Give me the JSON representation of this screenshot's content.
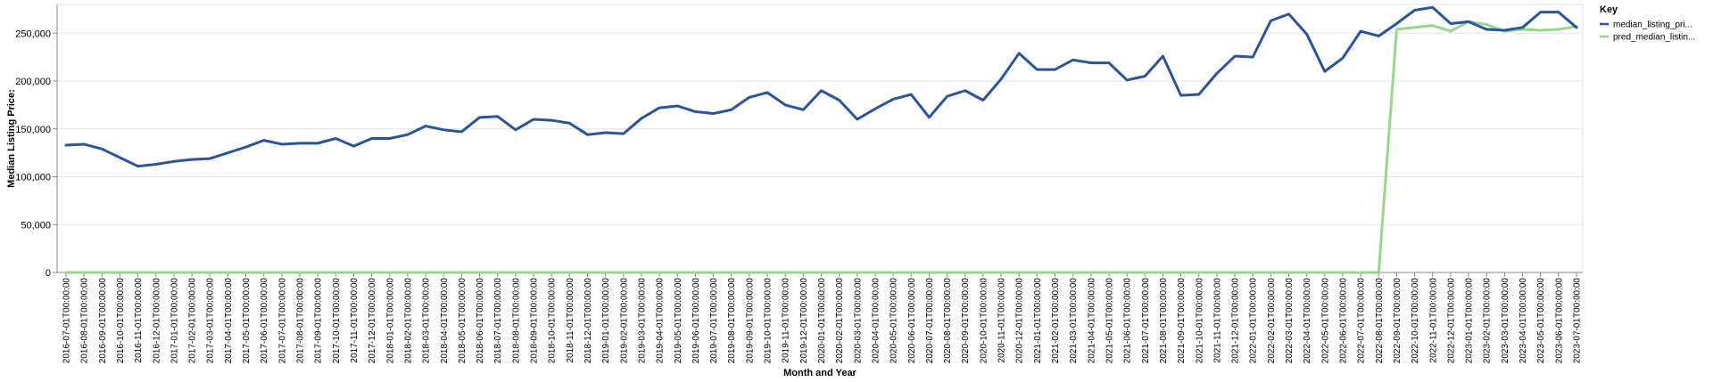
{
  "chart_data": {
    "type": "line",
    "xlabel": "Month and Year",
    "ylabel": "Median Listing Price:",
    "ylim": [
      0,
      280000
    ],
    "yticks": [
      0,
      50000,
      100000,
      150000,
      200000,
      250000
    ],
    "ytick_labels": [
      "0",
      "50,000",
      "100,000",
      "150,000",
      "200,000",
      "250,000"
    ],
    "grid": true,
    "legend": {
      "title": "Key",
      "placement": "top-right"
    },
    "colors": {
      "median_listing_price": "#2b5598",
      "pred_median_listing_price": "#98d68c"
    },
    "x": [
      "2016-07-01T00:00:00",
      "2016-08-01T00:00:00",
      "2016-09-01T00:00:00",
      "2016-10-01T00:00:00",
      "2016-11-01T00:00:00",
      "2016-12-01T00:00:00",
      "2017-01-01T00:00:00",
      "2017-02-01T00:00:00",
      "2017-03-01T00:00:00",
      "2017-04-01T00:00:00",
      "2017-05-01T00:00:00",
      "2017-06-01T00:00:00",
      "2017-07-01T00:00:00",
      "2017-08-01T00:00:00",
      "2017-09-01T00:00:00",
      "2017-10-01T00:00:00",
      "2017-11-01T00:00:00",
      "2017-12-01T00:00:00",
      "2018-01-01T00:00:00",
      "2018-02-01T00:00:00",
      "2018-03-01T00:00:00",
      "2018-04-01T00:00:00",
      "2018-05-01T00:00:00",
      "2018-06-01T00:00:00",
      "2018-07-01T00:00:00",
      "2018-08-01T00:00:00",
      "2018-09-01T00:00:00",
      "2018-10-01T00:00:00",
      "2018-11-01T00:00:00",
      "2018-12-01T00:00:00",
      "2019-01-01T00:00:00",
      "2019-02-01T00:00:00",
      "2019-03-01T00:00:00",
      "2019-04-01T00:00:00",
      "2019-05-01T00:00:00",
      "2019-06-01T00:00:00",
      "2019-07-01T00:00:00",
      "2019-08-01T00:00:00",
      "2019-09-01T00:00:00",
      "2019-10-01T00:00:00",
      "2019-11-01T00:00:00",
      "2019-12-01T00:00:00",
      "2020-01-01T00:00:00",
      "2020-02-01T00:00:00",
      "2020-03-01T00:00:00",
      "2020-04-01T00:00:00",
      "2020-05-01T00:00:00",
      "2020-06-01T00:00:00",
      "2020-07-01T00:00:00",
      "2020-08-01T00:00:00",
      "2020-09-01T00:00:00",
      "2020-10-01T00:00:00",
      "2020-11-01T00:00:00",
      "2020-12-01T00:00:00",
      "2021-01-01T00:00:00",
      "2021-02-01T00:00:00",
      "2021-03-01T00:00:00",
      "2021-04-01T00:00:00",
      "2021-05-01T00:00:00",
      "2021-06-01T00:00:00",
      "2021-07-01T00:00:00",
      "2021-08-01T00:00:00",
      "2021-09-01T00:00:00",
      "2021-10-01T00:00:00",
      "2021-11-01T00:00:00",
      "2021-12-01T00:00:00",
      "2022-01-01T00:00:00",
      "2022-02-01T00:00:00",
      "2022-03-01T00:00:00",
      "2022-04-01T00:00:00",
      "2022-05-01T00:00:00",
      "2022-06-01T00:00:00",
      "2022-07-01T00:00:00",
      "2022-08-01T00:00:00",
      "2022-09-01T00:00:00",
      "2022-10-01T00:00:00",
      "2022-11-01T00:00:00",
      "2022-12-01T00:00:00",
      "2023-01-01T00:00:00",
      "2023-02-01T00:00:00",
      "2023-03-01T00:00:00",
      "2023-04-01T00:00:00",
      "2023-05-01T00:00:00",
      "2023-06-01T00:00:00",
      "2023-07-01T00:00:00"
    ],
    "series": [
      {
        "name": "median_listing_pri...",
        "values": [
          133000,
          134000,
          129000,
          120000,
          111000,
          113000,
          116000,
          118000,
          119000,
          125000,
          131000,
          138000,
          134000,
          135000,
          135000,
          140000,
          132000,
          140000,
          140000,
          144000,
          153000,
          149000,
          147000,
          162000,
          163000,
          149000,
          160000,
          159000,
          156000,
          144000,
          146000,
          145000,
          161000,
          172000,
          174000,
          168000,
          166000,
          170000,
          183000,
          188000,
          175000,
          170000,
          190000,
          180000,
          160000,
          171000,
          181000,
          186000,
          162000,
          184000,
          190000,
          180000,
          202000,
          229000,
          212000,
          212000,
          222000,
          219000,
          219000,
          201000,
          205000,
          226000,
          185000,
          186000,
          208000,
          226000,
          225000,
          263000,
          270000,
          249000,
          210000,
          224000,
          252000,
          247000,
          260000,
          274000,
          277000,
          260000,
          262000,
          254000,
          253000,
          256000,
          272000,
          272000,
          256000
        ]
      },
      {
        "name": "pred_median_listin...",
        "values": [
          0,
          0,
          0,
          0,
          0,
          0,
          0,
          0,
          0,
          0,
          0,
          0,
          0,
          0,
          0,
          0,
          0,
          0,
          0,
          0,
          0,
          0,
          0,
          0,
          0,
          0,
          0,
          0,
          0,
          0,
          0,
          0,
          0,
          0,
          0,
          0,
          0,
          0,
          0,
          0,
          0,
          0,
          0,
          0,
          0,
          0,
          0,
          0,
          0,
          0,
          0,
          0,
          0,
          0,
          0,
          0,
          0,
          0,
          0,
          0,
          0,
          0,
          0,
          0,
          0,
          0,
          0,
          0,
          0,
          0,
          0,
          0,
          0,
          0,
          254000,
          256000,
          258000,
          252000,
          262000,
          259000,
          252000,
          254000,
          253000,
          254000,
          257000
        ]
      }
    ]
  }
}
